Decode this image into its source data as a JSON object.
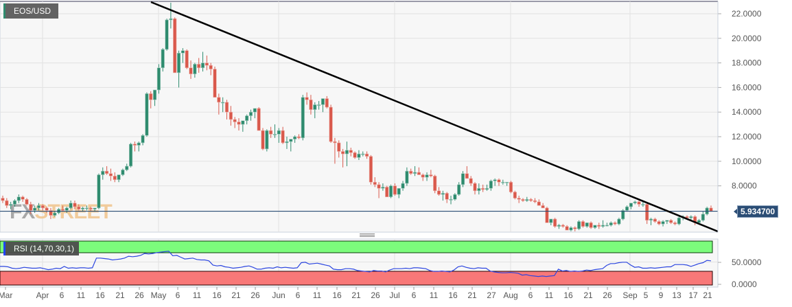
{
  "chart_data": [
    {
      "type": "candlestick",
      "title": "EOS/USD",
      "ylabel": "",
      "xlabel": "",
      "ylim": [
        4.5,
        23.0
      ],
      "y_ticks": [
        "22.0000",
        "20.0000",
        "18.0000",
        "16.0000",
        "14.0000",
        "12.0000",
        "10.0000",
        "8.0000"
      ],
      "current_price": "5.934700",
      "x_ticks": [
        "Mar",
        "Apr",
        "6",
        "11",
        "16",
        "21",
        "26",
        "May",
        "6",
        "11",
        "16",
        "21",
        "26",
        "Jun",
        "6",
        "11",
        "16",
        "21",
        "26",
        "Jul",
        "6",
        "11",
        "16",
        "21",
        "27",
        "Aug",
        "6",
        "11",
        "16",
        "21",
        "26",
        "Sep",
        "5",
        "9",
        "13",
        "17",
        "21"
      ],
      "trendline": {
        "from": {
          "date": "Apr 29",
          "price": 23.0
        },
        "to": {
          "date": "Sep 22",
          "price": 4.5
        },
        "color": "#000000"
      },
      "colors": {
        "up": "#2e8b6e",
        "down": "#d9594c"
      },
      "watermark": "FXSTREET",
      "candles": [
        [
          7.0,
          7.2,
          6.6,
          6.8
        ],
        [
          6.8,
          7.0,
          6.2,
          6.4
        ],
        [
          6.4,
          6.7,
          6.1,
          6.5
        ],
        [
          6.5,
          6.9,
          6.3,
          6.8
        ],
        [
          6.8,
          7.3,
          6.6,
          7.1
        ],
        [
          7.1,
          7.2,
          6.7,
          6.9
        ],
        [
          6.9,
          7.0,
          6.4,
          6.5
        ],
        [
          6.5,
          6.7,
          5.7,
          6.0
        ],
        [
          6.0,
          6.4,
          5.8,
          6.2
        ],
        [
          6.2,
          6.6,
          6.0,
          6.4
        ],
        [
          6.4,
          6.5,
          6.0,
          6.2
        ],
        [
          6.2,
          6.3,
          5.8,
          6.0
        ],
        [
          6.0,
          6.2,
          5.3,
          5.6
        ],
        [
          5.6,
          5.9,
          5.5,
          5.8
        ],
        [
          5.8,
          6.2,
          5.7,
          6.1
        ],
        [
          6.1,
          6.4,
          5.9,
          6.0
        ],
        [
          6.0,
          6.3,
          5.8,
          6.2
        ],
        [
          6.2,
          6.8,
          6.1,
          6.6
        ],
        [
          6.6,
          6.8,
          6.1,
          6.3
        ],
        [
          6.3,
          6.5,
          6.0,
          6.1
        ],
        [
          6.1,
          6.3,
          5.9,
          6.2
        ],
        [
          6.2,
          6.4,
          6.0,
          6.2
        ],
        [
          6.2,
          6.3,
          5.9,
          6.1
        ],
        [
          6.1,
          6.2,
          5.9,
          6.2
        ],
        [
          6.2,
          9.0,
          6.1,
          8.9
        ],
        [
          8.9,
          9.5,
          8.5,
          9.2
        ],
        [
          9.2,
          9.6,
          8.9,
          9.0
        ],
        [
          9.0,
          9.4,
          8.4,
          8.8
        ],
        [
          8.8,
          9.1,
          8.3,
          8.5
        ],
        [
          8.5,
          8.9,
          8.3,
          8.9
        ],
        [
          8.9,
          9.4,
          8.8,
          9.3
        ],
        [
          9.3,
          9.8,
          9.2,
          9.6
        ],
        [
          9.6,
          11.5,
          9.5,
          11.4
        ],
        [
          11.4,
          11.6,
          10.8,
          11.3
        ],
        [
          11.3,
          11.6,
          10.8,
          11.5
        ],
        [
          11.5,
          12.2,
          11.3,
          12.1
        ],
        [
          12.1,
          15.6,
          12.0,
          15.5
        ],
        [
          15.5,
          15.7,
          14.3,
          15.0
        ],
        [
          15.0,
          15.8,
          14.5,
          15.8
        ],
        [
          15.8,
          17.9,
          15.5,
          17.6
        ],
        [
          17.6,
          19.2,
          17.3,
          19.1
        ],
        [
          19.1,
          21.6,
          19.0,
          21.5
        ],
        [
          21.5,
          22.9,
          20.8,
          21.6
        ],
        [
          21.6,
          21.7,
          18.9,
          17.2
        ],
        [
          17.2,
          19.0,
          16.0,
          18.8
        ],
        [
          18.8,
          19.2,
          18.0,
          19.0
        ],
        [
          19.0,
          19.1,
          17.5,
          17.6
        ],
        [
          17.6,
          18.2,
          16.7,
          17.1
        ],
        [
          17.1,
          18.0,
          16.8,
          17.9
        ],
        [
          17.9,
          18.4,
          17.2,
          17.6
        ],
        [
          17.6,
          18.9,
          17.3,
          18.0
        ],
        [
          18.0,
          18.6,
          17.4,
          17.8
        ],
        [
          17.8,
          18.0,
          17.0,
          17.5
        ],
        [
          17.5,
          17.7,
          15.3,
          15.2
        ],
        [
          15.2,
          15.5,
          13.8,
          14.8
        ],
        [
          14.8,
          15.2,
          14.0,
          14.8
        ],
        [
          14.8,
          15.0,
          13.4,
          14.0
        ],
        [
          14.0,
          14.5,
          12.9,
          13.4
        ],
        [
          13.4,
          13.6,
          12.7,
          13.2
        ],
        [
          13.2,
          13.5,
          12.5,
          13.0
        ],
        [
          13.0,
          13.3,
          12.4,
          13.3
        ],
        [
          13.3,
          13.8,
          13.0,
          13.7
        ],
        [
          13.7,
          14.2,
          13.3,
          14.0
        ],
        [
          14.0,
          14.2,
          13.5,
          14.3
        ],
        [
          14.3,
          14.4,
          12.6,
          12.5
        ],
        [
          12.5,
          12.7,
          10.9,
          11.0
        ],
        [
          11.0,
          12.6,
          10.8,
          12.5
        ],
        [
          12.5,
          12.8,
          11.9,
          12.2
        ],
        [
          12.2,
          13.0,
          11.9,
          12.2
        ],
        [
          12.2,
          12.7,
          11.5,
          12.5
        ],
        [
          12.5,
          12.8,
          11.4,
          11.5
        ],
        [
          11.5,
          12.0,
          11.0,
          11.6
        ],
        [
          11.6,
          11.8,
          10.8,
          11.8
        ],
        [
          11.8,
          12.1,
          11.5,
          12.0
        ],
        [
          12.0,
          12.2,
          11.8,
          11.9
        ],
        [
          11.9,
          15.4,
          11.7,
          15.2
        ],
        [
          15.2,
          15.6,
          14.6,
          15.0
        ],
        [
          15.0,
          15.4,
          13.8,
          14.2
        ],
        [
          14.2,
          14.8,
          13.5,
          14.6
        ],
        [
          14.6,
          14.9,
          14.2,
          14.6
        ],
        [
          14.6,
          15.1,
          14.0,
          15.1
        ],
        [
          15.1,
          15.3,
          14.3,
          14.4
        ],
        [
          14.4,
          14.6,
          11.5,
          11.6
        ],
        [
          11.6,
          11.9,
          9.8,
          11.5
        ],
        [
          11.5,
          11.7,
          10.3,
          10.8
        ],
        [
          10.8,
          11.0,
          9.5,
          10.6
        ],
        [
          10.6,
          11.6,
          9.6,
          10.9
        ],
        [
          10.9,
          11.1,
          10.4,
          10.7
        ],
        [
          10.7,
          10.8,
          10.2,
          10.3
        ],
        [
          10.3,
          10.9,
          10.1,
          10.6
        ],
        [
          10.6,
          10.8,
          10.4,
          10.6
        ],
        [
          10.6,
          10.8,
          10.2,
          10.4
        ],
        [
          10.4,
          10.5,
          8.1,
          8.3
        ],
        [
          8.3,
          8.7,
          7.9,
          8.1
        ],
        [
          8.1,
          8.3,
          7.0,
          7.8
        ],
        [
          7.8,
          8.2,
          7.6,
          7.9
        ],
        [
          7.9,
          8.0,
          7.2,
          7.1
        ],
        [
          7.1,
          8.1,
          7.0,
          8.0
        ],
        [
          8.0,
          8.2,
          7.2,
          7.3
        ],
        [
          7.3,
          7.8,
          7.0,
          7.8
        ],
        [
          7.8,
          8.4,
          7.6,
          8.2
        ],
        [
          8.2,
          9.5,
          8.0,
          9.2
        ],
        [
          9.2,
          9.4,
          8.9,
          9.0
        ],
        [
          9.0,
          9.6,
          8.8,
          9.1
        ],
        [
          9.1,
          9.5,
          8.9,
          8.9
        ],
        [
          8.9,
          9.0,
          8.4,
          8.7
        ],
        [
          8.7,
          9.1,
          8.4,
          8.9
        ],
        [
          8.9,
          9.3,
          8.7,
          8.8
        ],
        [
          8.8,
          8.9,
          7.4,
          7.6
        ],
        [
          7.6,
          7.9,
          7.2,
          7.3
        ],
        [
          7.3,
          7.6,
          6.8,
          7.4
        ],
        [
          7.4,
          7.5,
          6.6,
          6.9
        ],
        [
          6.9,
          7.2,
          6.5,
          6.9
        ],
        [
          6.9,
          7.4,
          6.8,
          7.3
        ],
        [
          7.3,
          8.3,
          7.2,
          8.1
        ],
        [
          8.1,
          9.2,
          7.9,
          9.0
        ],
        [
          9.0,
          9.6,
          8.6,
          8.6
        ],
        [
          8.6,
          8.8,
          8.0,
          8.2
        ],
        [
          8.2,
          8.3,
          7.3,
          7.6
        ],
        [
          7.6,
          8.2,
          7.3,
          7.8
        ],
        [
          7.8,
          8.1,
          7.5,
          7.7
        ],
        [
          7.7,
          8.1,
          7.6,
          7.8
        ],
        [
          7.8,
          8.5,
          7.6,
          8.4
        ],
        [
          8.4,
          8.6,
          8.0,
          8.5
        ],
        [
          8.5,
          8.6,
          8.0,
          8.3
        ],
        [
          8.3,
          8.5,
          8.1,
          8.3
        ],
        [
          8.3,
          8.3,
          8.0,
          8.3
        ],
        [
          8.3,
          8.4,
          7.4,
          7.5
        ],
        [
          7.5,
          7.6,
          6.9,
          7.0
        ],
        [
          7.0,
          7.2,
          6.6,
          6.9
        ],
        [
          6.9,
          7.0,
          6.7,
          6.8
        ],
        [
          6.8,
          7.1,
          6.7,
          6.9
        ],
        [
          6.9,
          7.0,
          6.7,
          6.8
        ],
        [
          6.8,
          7.0,
          6.6,
          6.7
        ],
        [
          6.7,
          6.9,
          6.5,
          6.4
        ],
        [
          6.4,
          6.6,
          6.2,
          6.2
        ],
        [
          6.2,
          6.3,
          5.3,
          5.0
        ],
        [
          5.0,
          5.3,
          4.8,
          5.3
        ],
        [
          5.3,
          5.4,
          4.6,
          4.7
        ],
        [
          4.7,
          4.9,
          4.5,
          4.8
        ],
        [
          4.8,
          4.9,
          4.6,
          4.7
        ],
        [
          4.7,
          4.8,
          4.4,
          4.4
        ],
        [
          4.4,
          4.7,
          4.3,
          4.6
        ],
        [
          4.6,
          4.7,
          4.3,
          4.5
        ],
        [
          4.5,
          5.2,
          4.4,
          5.1
        ],
        [
          5.1,
          5.2,
          4.6,
          4.7
        ],
        [
          4.7,
          5.0,
          4.6,
          5.0
        ],
        [
          5.0,
          5.1,
          4.5,
          4.6
        ],
        [
          4.6,
          4.8,
          4.5,
          4.8
        ],
        [
          4.8,
          5.0,
          4.5,
          4.7
        ],
        [
          4.7,
          5.2,
          4.6,
          4.8
        ],
        [
          4.8,
          5.0,
          4.7,
          4.8
        ],
        [
          4.8,
          5.1,
          4.7,
          5.0
        ],
        [
          5.0,
          5.1,
          4.8,
          4.9
        ],
        [
          4.9,
          5.4,
          4.8,
          5.3
        ],
        [
          5.3,
          6.1,
          5.2,
          6.0
        ],
        [
          6.0,
          6.4,
          5.9,
          6.3
        ],
        [
          6.3,
          6.6,
          6.1,
          6.6
        ],
        [
          6.6,
          6.8,
          6.5,
          6.7
        ],
        [
          6.7,
          6.8,
          6.3,
          6.5
        ],
        [
          6.5,
          6.7,
          6.3,
          6.5
        ],
        [
          6.5,
          6.6,
          4.9,
          5.2
        ],
        [
          5.2,
          5.4,
          4.8,
          5.3
        ],
        [
          5.3,
          5.4,
          5.0,
          5.1
        ],
        [
          5.1,
          5.2,
          4.8,
          4.9
        ],
        [
          4.9,
          5.2,
          4.7,
          5.1
        ],
        [
          5.1,
          5.2,
          4.9,
          5.2
        ],
        [
          5.2,
          5.3,
          4.9,
          5.0
        ],
        [
          5.0,
          5.1,
          4.8,
          4.9
        ],
        [
          4.9,
          5.5,
          4.8,
          5.4
        ],
        [
          5.4,
          5.6,
          5.2,
          5.5
        ],
        [
          5.5,
          5.6,
          5.3,
          5.4
        ],
        [
          5.4,
          5.6,
          5.2,
          5.5
        ],
        [
          5.5,
          5.6,
          4.8,
          5.0
        ],
        [
          5.0,
          5.3,
          4.9,
          5.2
        ],
        [
          5.2,
          5.9,
          5.1,
          5.7
        ],
        [
          5.7,
          6.3,
          5.6,
          6.2
        ],
        [
          6.2,
          6.4,
          5.9,
          5.93
        ]
      ]
    },
    {
      "type": "line",
      "title": "RSI (14,70,30,1)",
      "ylim": [
        0,
        100
      ],
      "y_ticks": [
        "50.0000",
        "0.0000"
      ],
      "overbought": 70,
      "oversold": 30,
      "colors": {
        "line": "#2c46e0",
        "overbought_band": "#7cfc7c",
        "oversold_band": "#f87878"
      },
      "values": [
        42,
        42,
        41,
        38,
        37,
        38,
        40,
        39,
        38,
        38,
        39,
        37,
        35,
        36,
        38,
        37,
        42,
        38,
        39,
        38,
        39,
        39,
        38,
        39,
        60,
        60,
        59,
        58,
        56,
        57,
        58,
        60,
        64,
        63,
        64,
        66,
        70,
        69,
        70,
        72,
        73,
        74,
        75,
        65,
        66,
        62,
        58,
        59,
        60,
        57,
        56,
        56,
        54,
        45,
        43,
        44,
        41,
        40,
        38,
        39,
        40,
        42,
        43,
        40,
        36,
        36,
        38,
        39,
        38,
        41,
        39,
        40,
        39,
        38,
        39,
        50,
        51,
        47,
        48,
        49,
        47,
        45,
        43,
        36,
        35,
        35,
        37,
        37,
        36,
        33,
        32,
        31,
        30,
        33,
        32,
        32,
        30,
        34,
        37,
        37,
        37,
        38,
        37,
        39,
        39,
        38,
        37,
        33,
        31,
        31,
        32,
        31,
        30,
        34,
        41,
        43,
        40,
        38,
        37,
        39,
        38,
        38,
        32,
        30,
        29,
        28,
        28,
        29,
        28,
        27,
        23,
        24,
        22,
        21,
        20,
        21,
        20,
        21,
        22,
        36,
        32,
        33,
        31,
        32,
        31,
        32,
        34,
        33,
        35,
        36,
        37,
        44,
        48,
        48,
        50,
        51,
        51,
        45,
        40,
        41,
        38,
        38,
        39,
        38,
        39,
        40,
        41,
        41,
        46,
        46,
        46,
        45,
        42,
        45,
        48,
        50,
        55,
        54
      ]
    }
  ],
  "header": {
    "pair_label": "EOS/USD"
  },
  "indicator": {
    "rsi_label": "RSI (14,70,30,1)"
  },
  "price_tag": "5.934700",
  "watermark": "FXSTREET"
}
